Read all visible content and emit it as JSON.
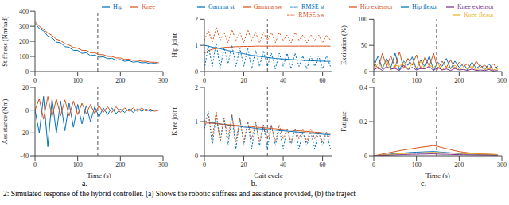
{
  "chart_data": [
    {
      "type": "line",
      "y_label": "Stiffness (Nm/rad)",
      "x": [
        0,
        10,
        20,
        30,
        40,
        50,
        60,
        70,
        80,
        90,
        100,
        110,
        120,
        130,
        140,
        150,
        160,
        170,
        180,
        190,
        200,
        210,
        220,
        230,
        240,
        250,
        260,
        270,
        280,
        290
      ],
      "xlim": [
        0,
        300
      ],
      "xticks": [
        0,
        100,
        200,
        300
      ],
      "ylim": [
        0,
        400
      ],
      "yticks": [
        0,
        100,
        200,
        300,
        400
      ],
      "grid": false,
      "legend": "upper right",
      "vline": 147,
      "series": [
        {
          "name": "Hip",
          "color": "#0072bd",
          "values": [
            320,
            285,
            270,
            235,
            225,
            195,
            190,
            165,
            160,
            140,
            140,
            120,
            125,
            105,
            110,
            95,
            98,
            85,
            88,
            75,
            80,
            68,
            72,
            62,
            66,
            58,
            60,
            52,
            55,
            50
          ]
        },
        {
          "name": "Knee",
          "color": "#d95319",
          "values": [
            330,
            300,
            280,
            255,
            240,
            215,
            205,
            185,
            175,
            160,
            155,
            140,
            140,
            125,
            125,
            112,
            112,
            100,
            100,
            90,
            90,
            80,
            82,
            74,
            75,
            68,
            68,
            62,
            62,
            58
          ]
        }
      ]
    },
    {
      "type": "line",
      "y_label": "Assistance (Nm)",
      "x_label": "Time (s)",
      "x": [
        0,
        10,
        20,
        30,
        40,
        50,
        60,
        70,
        80,
        90,
        100,
        110,
        120,
        130,
        140,
        150,
        160,
        170,
        180,
        190,
        200,
        210,
        220,
        230,
        240,
        250,
        260,
        270,
        280,
        290
      ],
      "xlim": [
        0,
        300
      ],
      "xticks": [
        0,
        100,
        200,
        300
      ],
      "ylim": [
        -40,
        20
      ],
      "yticks": [
        -40,
        -20,
        0,
        20
      ],
      "grid": false,
      "vline": 147,
      "series": [
        {
          "name": "Hip",
          "color": "#0072bd",
          "values": [
            0,
            -20,
            12,
            -32,
            10,
            -20,
            8,
            -18,
            6,
            -15,
            5,
            -12,
            4,
            -10,
            3,
            -6,
            2,
            -4,
            2,
            -3,
            1,
            -2,
            1,
            -2,
            1,
            -1,
            1,
            -1,
            0,
            0
          ]
        },
        {
          "name": "Knee",
          "color": "#d95319",
          "values": [
            0,
            10,
            -8,
            12,
            -6,
            10,
            -5,
            9,
            -5,
            8,
            -4,
            6,
            -3,
            5,
            -3,
            4,
            -2,
            3,
            -2,
            3,
            -2,
            2,
            -1,
            2,
            -1,
            2,
            -1,
            1,
            -1,
            0
          ]
        }
      ]
    },
    {
      "type": "line",
      "y_label": "Hip joint",
      "x": [
        0,
        2,
        4,
        6,
        8,
        10,
        12,
        14,
        16,
        18,
        20,
        22,
        24,
        26,
        28,
        30,
        32,
        34,
        36,
        38,
        40,
        42,
        44,
        46,
        48,
        50,
        52,
        54,
        56,
        58,
        60,
        62,
        64
      ],
      "xlim": [
        0,
        65
      ],
      "xticks": [
        0,
        20,
        40,
        60
      ],
      "ylim": [
        0,
        2
      ],
      "yticks": [
        0,
        1,
        2
      ],
      "grid": false,
      "legend": "upper right",
      "vline": 32,
      "series": [
        {
          "name": "Gamma st",
          "color": "#0072bd",
          "line_style": "solid",
          "values": [
            1.0,
            0.97,
            0.93,
            0.9,
            0.87,
            0.84,
            0.8,
            0.77,
            0.74,
            0.71,
            0.68,
            0.65,
            0.62,
            0.6,
            0.58,
            0.56,
            0.54,
            0.52,
            0.5,
            0.49,
            0.48,
            0.47,
            0.46,
            0.45,
            0.44,
            0.43,
            0.42,
            0.41,
            0.41,
            0.4,
            0.4,
            0.39,
            0.39
          ]
        },
        {
          "name": "Gamma sw",
          "color": "#d95319",
          "line_style": "solid",
          "values": [
            0.7,
            0.8,
            0.85,
            0.88,
            0.9,
            0.92,
            0.93,
            0.94,
            0.95,
            0.95,
            0.96,
            0.96,
            0.96,
            0.97,
            0.97,
            0.97,
            0.97,
            0.97,
            0.97,
            0.97,
            0.97,
            0.97,
            0.97,
            0.97,
            0.97,
            0.97,
            0.97,
            0.97,
            0.97,
            0.97,
            0.97,
            0.97,
            0.97
          ]
        },
        {
          "name": "RMSE st",
          "color": "#0072bd",
          "line_style": "dotted",
          "values": [
            0.1,
            1.0,
            0.2,
            1.1,
            0.1,
            0.9,
            0.3,
            1.0,
            0.2,
            0.9,
            0.2,
            0.9,
            0.1,
            0.8,
            0.2,
            0.8,
            0.2,
            0.7,
            0.1,
            0.7,
            0.2,
            0.7,
            0.1,
            0.7,
            0.2,
            0.6,
            0.1,
            0.6,
            0.2,
            0.6,
            0.1,
            0.6,
            0.2
          ]
        },
        {
          "name": "RMSE sw",
          "color": "#d95319",
          "line_style": "dotted",
          "values": [
            1.2,
            1.6,
            1.1,
            1.7,
            1.2,
            1.5,
            1.1,
            1.6,
            1.2,
            1.5,
            1.1,
            1.6,
            1.2,
            1.5,
            1.1,
            1.5,
            1.2,
            1.5,
            1.1,
            1.5,
            1.2,
            1.4,
            1.1,
            1.5,
            1.2,
            1.4,
            1.1,
            1.4,
            1.2,
            1.4,
            1.1,
            1.4,
            1.2
          ]
        }
      ]
    },
    {
      "type": "line",
      "y_label": "Knee joint",
      "x_label": "Gait cycle",
      "x": [
        0,
        2,
        4,
        6,
        8,
        10,
        12,
        14,
        16,
        18,
        20,
        22,
        24,
        26,
        28,
        30,
        32,
        34,
        36,
        38,
        40,
        42,
        44,
        46,
        48,
        50,
        52,
        54,
        56,
        58,
        60,
        62,
        64
      ],
      "xlim": [
        0,
        65
      ],
      "xticks": [
        0,
        20,
        40,
        60
      ],
      "ylim": [
        0,
        2
      ],
      "yticks": [
        0,
        1,
        2
      ],
      "grid": false,
      "vline": 32,
      "series": [
        {
          "name": "Gamma st",
          "color": "#0072bd",
          "line_style": "solid",
          "values": [
            1.0,
            0.98,
            0.96,
            0.95,
            0.93,
            0.92,
            0.9,
            0.89,
            0.87,
            0.86,
            0.84,
            0.83,
            0.82,
            0.8,
            0.79,
            0.78,
            0.77,
            0.76,
            0.75,
            0.74,
            0.73,
            0.72,
            0.71,
            0.7,
            0.69,
            0.68,
            0.67,
            0.66,
            0.65,
            0.64,
            0.63,
            0.62,
            0.61
          ]
        },
        {
          "name": "Gamma sw",
          "color": "#d95319",
          "line_style": "solid",
          "values": [
            0.95,
            0.96,
            0.95,
            0.94,
            0.93,
            0.92,
            0.91,
            0.9,
            0.89,
            0.88,
            0.87,
            0.86,
            0.85,
            0.84,
            0.83,
            0.82,
            0.81,
            0.8,
            0.79,
            0.78,
            0.77,
            0.76,
            0.75,
            0.74,
            0.73,
            0.72,
            0.71,
            0.7,
            0.69,
            0.68,
            0.67,
            0.66,
            0.65
          ]
        },
        {
          "name": "RMSE st",
          "color": "#0072bd",
          "line_style": "dotted",
          "values": [
            0.8,
            1.3,
            0.3,
            1.2,
            0.4,
            1.1,
            0.3,
            1.2,
            0.2,
            1.1,
            0.3,
            1.0,
            0.2,
            1.0,
            0.3,
            0.9,
            0.2,
            0.9,
            0.3,
            0.8,
            0.2,
            0.8,
            0.3,
            0.8,
            0.2,
            0.7,
            0.3,
            0.7,
            0.2,
            0.7,
            0.3,
            0.7,
            0.2
          ]
        },
        {
          "name": "RMSE sw",
          "color": "#d95319",
          "line_style": "dotted",
          "values": [
            1.0,
            1.2,
            0.5,
            1.3,
            0.4,
            1.1,
            0.5,
            1.2,
            0.4,
            1.1,
            0.4,
            1.0,
            0.5,
            1.0,
            0.4,
            0.9,
            0.5,
            0.9,
            0.4,
            0.9,
            0.5,
            0.8,
            0.4,
            0.8,
            0.5,
            0.8,
            0.4,
            0.8,
            0.5,
            0.7,
            0.4,
            0.7,
            0.5
          ]
        }
      ]
    },
    {
      "type": "line",
      "y_label": "Excitation (%)",
      "x": [
        0,
        10,
        20,
        30,
        40,
        50,
        60,
        70,
        80,
        90,
        100,
        110,
        120,
        130,
        140,
        150,
        160,
        170,
        180,
        190,
        200,
        210,
        220,
        230,
        240,
        250,
        260,
        270,
        280,
        290
      ],
      "xlim": [
        0,
        300
      ],
      "xticks": [
        0,
        100,
        200,
        300
      ],
      "ylim": [
        0,
        100
      ],
      "yticks": [
        0,
        50,
        100
      ],
      "grid": false,
      "legend": "upper right",
      "vline": 147,
      "series": [
        {
          "name": "Hip flexor",
          "color": "#0072bd",
          "values": [
            10,
            30,
            5,
            25,
            8,
            35,
            3,
            20,
            12,
            28,
            4,
            22,
            9,
            30,
            2,
            18,
            10,
            25,
            5,
            20,
            8,
            15,
            3,
            18,
            6,
            12,
            4,
            15,
            2,
            10
          ]
        },
        {
          "name": "Hip extensor",
          "color": "#d95319",
          "values": [
            20,
            5,
            35,
            10,
            30,
            8,
            38,
            6,
            25,
            12,
            32,
            5,
            28,
            10,
            35,
            4,
            20,
            8,
            22,
            6,
            18,
            10,
            15,
            5,
            20,
            8,
            12,
            6,
            15,
            4
          ]
        },
        {
          "name": "Knee flexor",
          "color": "#edb120",
          "values": [
            5,
            15,
            8,
            20,
            3,
            12,
            10,
            18,
            5,
            15,
            7,
            20,
            4,
            12,
            8,
            15,
            3,
            10,
            6,
            12,
            4,
            8,
            5,
            10,
            3,
            8,
            4,
            6,
            3,
            5
          ]
        },
        {
          "name": "Knee extensor",
          "color": "#7e2f8e",
          "values": [
            3,
            8,
            2,
            10,
            5,
            6,
            2,
            12,
            4,
            8,
            3,
            6,
            5,
            10,
            2,
            8,
            3,
            5,
            2,
            6,
            3,
            4,
            2,
            5,
            2,
            3,
            2,
            4,
            1,
            2
          ]
        }
      ]
    },
    {
      "type": "line",
      "y_label": "Fatigue",
      "x_label": "Time (s)",
      "x": [
        0,
        10,
        20,
        30,
        40,
        50,
        60,
        70,
        80,
        90,
        100,
        110,
        120,
        130,
        140,
        150,
        160,
        170,
        180,
        190,
        200,
        210,
        220,
        230,
        240,
        250,
        260,
        270,
        280,
        290
      ],
      "xlim": [
        0,
        300
      ],
      "xticks": [
        0,
        100,
        200,
        300
      ],
      "ylim": [
        0,
        0.4
      ],
      "yticks": [
        0,
        0.2,
        0.4
      ],
      "grid": false,
      "vline": 147,
      "series": [
        {
          "color": "#0072bd",
          "values": [
            0,
            0.002,
            0.005,
            0.007,
            0.01,
            0.012,
            0.014,
            0.016,
            0.018,
            0.02,
            0.021,
            0.022,
            0.023,
            0.024,
            0.025,
            0.023,
            0.021,
            0.019,
            0.017,
            0.015,
            0.013,
            0.012,
            0.011,
            0.01,
            0.009,
            0.008,
            0.007,
            0.007,
            0.006,
            0.006
          ]
        },
        {
          "color": "#d95319",
          "values": [
            0,
            0.005,
            0.01,
            0.015,
            0.02,
            0.025,
            0.03,
            0.034,
            0.038,
            0.042,
            0.046,
            0.05,
            0.053,
            0.056,
            0.06,
            0.055,
            0.048,
            0.042,
            0.036,
            0.03,
            0.025,
            0.021,
            0.018,
            0.015,
            0.013,
            0.011,
            0.01,
            0.009,
            0.008,
            0.007
          ]
        },
        {
          "color": "#edb120",
          "values": [
            0,
            0.002,
            0.004,
            0.006,
            0.008,
            0.01,
            0.012,
            0.013,
            0.014,
            0.015,
            0.016,
            0.017,
            0.018,
            0.019,
            0.02,
            0.019,
            0.018,
            0.017,
            0.016,
            0.015,
            0.014,
            0.013,
            0.012,
            0.011,
            0.01,
            0.009,
            0.009,
            0.008,
            0.008,
            0.007
          ]
        },
        {
          "color": "#7e2f8e",
          "values": [
            0,
            0.001,
            0.002,
            0.003,
            0.004,
            0.005,
            0.006,
            0.007,
            0.008,
            0.009,
            0.009,
            0.01,
            0.01,
            0.011,
            0.011,
            0.01,
            0.009,
            0.009,
            0.008,
            0.007,
            0.007,
            0.006,
            0.006,
            0.005,
            0.005,
            0.004,
            0.004,
            0.004,
            0.003,
            0.003
          ]
        }
      ]
    }
  ],
  "panel_labels": [
    "a.",
    "b.",
    "c."
  ],
  "caption": "2: Simulated response of the hybrid controller. (a) Shows the robotic stiffness and assistance provided, (b) the traject"
}
